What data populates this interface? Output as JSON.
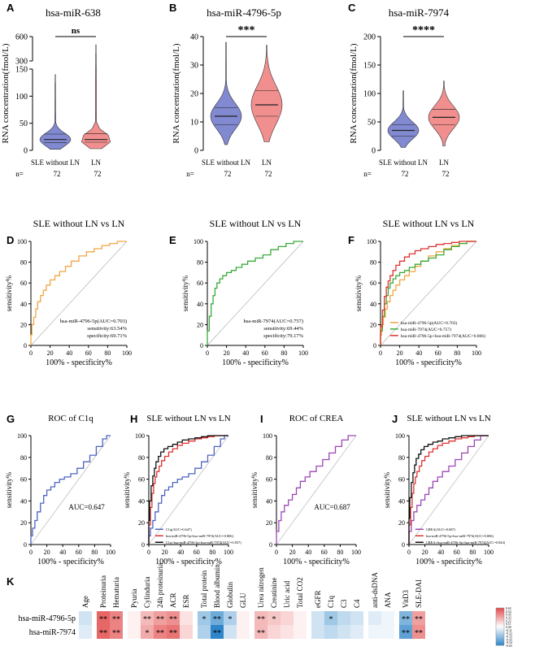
{
  "figure": {
    "panels": [
      "A",
      "B",
      "C",
      "D",
      "E",
      "F",
      "G",
      "H",
      "I",
      "J",
      "K"
    ]
  },
  "chart_data": [
    {
      "id": "A",
      "type": "violin",
      "title": "hsa-miR-638",
      "ylabel": "RNA concentration(fmol/L)",
      "categories": [
        "SLE without LN",
        "LN"
      ],
      "n_label": "n=",
      "n": [
        72,
        72
      ],
      "significance": "ns",
      "yticks": [
        "0",
        "50",
        "100",
        "150",
        "300",
        "600"
      ],
      "y_break": [
        150,
        300
      ],
      "colors": [
        "#6b74c8",
        "#ef7b7b"
      ],
      "series": [
        {
          "name": "SLE without LN",
          "median": 20,
          "q1": 14,
          "q3": 30,
          "min": 2,
          "max": 140
        },
        {
          "name": "LN",
          "median": 20,
          "q1": 15,
          "q3": 31,
          "min": 3,
          "max": 500
        }
      ]
    },
    {
      "id": "B",
      "type": "violin",
      "title": "hsa-miR-4796-5p",
      "ylabel": "RNA concentration(fmol/L)",
      "categories": [
        "SLE without LN",
        "LN"
      ],
      "n_label": "n=",
      "n": [
        72,
        72
      ],
      "significance": "***",
      "ylim": [
        0,
        40
      ],
      "yticks": [
        "0",
        "10",
        "20",
        "30",
        "40"
      ],
      "colors": [
        "#6b74c8",
        "#ef7b7b"
      ],
      "series": [
        {
          "name": "SLE without LN",
          "median": 12,
          "q1": 9,
          "q3": 15,
          "min": 2,
          "max": 38
        },
        {
          "name": "LN",
          "median": 16,
          "q1": 12,
          "q3": 21,
          "min": 3,
          "max": 37
        }
      ]
    },
    {
      "id": "C",
      "type": "violin",
      "title": "hsa-miR-7974",
      "ylabel": "RNA concentration(fmol/L)",
      "categories": [
        "SLE without LN",
        "LN"
      ],
      "n_label": "n=",
      "n": [
        72,
        72
      ],
      "significance": "****",
      "ylim": [
        0,
        200
      ],
      "yticks": [
        "0",
        "50",
        "100",
        "150",
        "200"
      ],
      "colors": [
        "#6b74c8",
        "#ef7b7b"
      ],
      "series": [
        {
          "name": "SLE without LN",
          "median": 35,
          "q1": 25,
          "q3": 45,
          "min": 5,
          "max": 105
        },
        {
          "name": "LN",
          "median": 58,
          "q1": 45,
          "q3": 72,
          "min": 8,
          "max": 122
        }
      ]
    },
    {
      "id": "D",
      "type": "line",
      "title": "SLE without LN vs LN",
      "xlabel": "100% - specificity%",
      "ylabel": "sensitivity%",
      "xlim": [
        0,
        100
      ],
      "ylim": [
        0,
        100
      ],
      "ticks": [
        "0",
        "20",
        "40",
        "60",
        "80",
        "100"
      ],
      "annotation": [
        "hsa-miR-4796-5p(AUC=0.703)",
        "sensitivity:63.54%",
        "specificity:69.71%"
      ],
      "series": [
        {
          "name": "hsa-miR-4796-5p",
          "color": "#f0a646",
          "x": [
            0,
            1,
            3,
            5,
            7,
            10,
            13,
            16,
            20,
            25,
            30,
            36,
            42,
            50,
            58,
            66,
            74,
            82,
            90,
            100
          ],
          "y": [
            0,
            10,
            20,
            27,
            35,
            42,
            48,
            53,
            58,
            63,
            67,
            71,
            76,
            81,
            86,
            90,
            93,
            96,
            98,
            100
          ]
        }
      ]
    },
    {
      "id": "E",
      "type": "line",
      "title": "SLE without LN vs LN",
      "xlabel": "100% - specificity%",
      "ylabel": "sensitivity%",
      "xlim": [
        0,
        100
      ],
      "ylim": [
        0,
        100
      ],
      "ticks": [
        "0",
        "20",
        "40",
        "60",
        "80",
        "100"
      ],
      "annotation": [
        "hsa-miR-7974(AUC=0.757)",
        "sensitivity:69.44%",
        "specificity:79.17%"
      ],
      "series": [
        {
          "name": "hsa-miR-7974",
          "color": "#3aaa3a",
          "x": [
            0,
            2,
            4,
            6,
            8,
            10,
            13,
            16,
            20,
            25,
            30,
            36,
            42,
            50,
            58,
            66,
            74,
            82,
            90,
            100
          ],
          "y": [
            0,
            14,
            28,
            40,
            48,
            55,
            60,
            64,
            67,
            70,
            72,
            75,
            78,
            81,
            84,
            87,
            92,
            95,
            98,
            100
          ]
        }
      ]
    },
    {
      "id": "F",
      "type": "line",
      "title": "SLE without LN vs LN",
      "xlabel": "100% - specificity%",
      "ylabel": "sensitivity%",
      "xlim": [
        0,
        100
      ],
      "ylim": [
        0,
        100
      ],
      "ticks": [
        "0",
        "20",
        "40",
        "60",
        "80",
        "100"
      ],
      "legend_position": "bottom-right",
      "series": [
        {
          "name": "hsa-miR-4796-5p(AUC=0.703)",
          "color": "#f0a646",
          "x": [
            0,
            1,
            3,
            5,
            7,
            10,
            13,
            16,
            20,
            25,
            30,
            36,
            42,
            50,
            58,
            66,
            74,
            82,
            90,
            100
          ],
          "y": [
            0,
            10,
            20,
            27,
            35,
            42,
            48,
            53,
            58,
            63,
            67,
            71,
            76,
            81,
            86,
            90,
            93,
            96,
            98,
            100
          ]
        },
        {
          "name": "hsa-miR-7974(AUC=0.757)",
          "color": "#3aaa3a",
          "x": [
            0,
            2,
            4,
            6,
            8,
            10,
            13,
            16,
            20,
            25,
            30,
            36,
            42,
            50,
            58,
            66,
            74,
            82,
            90,
            100
          ],
          "y": [
            0,
            14,
            28,
            40,
            48,
            55,
            60,
            64,
            67,
            70,
            72,
            75,
            78,
            81,
            84,
            87,
            92,
            95,
            98,
            100
          ]
        },
        {
          "name": "hsa-miR-4796-5p+hsa-miR-7974(AUC=0.806)",
          "color": "#e03232",
          "x": [
            0,
            2,
            4,
            6,
            8,
            10,
            13,
            16,
            20,
            25,
            30,
            36,
            42,
            50,
            58,
            66,
            74,
            82,
            90,
            100
          ],
          "y": [
            0,
            18,
            34,
            47,
            56,
            62,
            67,
            72,
            77,
            81,
            85,
            88,
            91,
            93,
            95,
            97,
            98,
            99,
            100,
            100
          ]
        }
      ]
    },
    {
      "id": "G",
      "type": "line",
      "title": "ROC of C1q",
      "xlabel": "100% - specificity%",
      "ylabel": "sensitivity%",
      "xlim": [
        0,
        100
      ],
      "ylim": [
        0,
        100
      ],
      "ticks": [
        "0",
        "20",
        "40",
        "60",
        "80",
        "100"
      ],
      "annotation": [
        "AUC=0.647"
      ],
      "series": [
        {
          "name": "C1q",
          "color": "#4d64c0",
          "x": [
            0,
            2,
            5,
            8,
            12,
            16,
            20,
            25,
            30,
            36,
            42,
            50,
            58,
            66,
            74,
            82,
            90,
            95,
            100
          ],
          "y": [
            0,
            8,
            15,
            22,
            30,
            38,
            45,
            50,
            53,
            57,
            60,
            62,
            65,
            70,
            76,
            82,
            90,
            97,
            100
          ]
        }
      ]
    },
    {
      "id": "H",
      "type": "line",
      "title": "SLE without LN vs LN",
      "xlabel": "100% - specificity%",
      "ylabel": "sensitivity%",
      "xlim": [
        0,
        100
      ],
      "ylim": [
        0,
        100
      ],
      "ticks": [
        "0",
        "20",
        "40",
        "60",
        "80",
        "100"
      ],
      "legend_position": "bottom-right",
      "series": [
        {
          "name": "C1q(AUC=0.647)",
          "color": "#4d64c0",
          "x": [
            0,
            2,
            5,
            8,
            12,
            16,
            20,
            25,
            30,
            36,
            42,
            50,
            58,
            66,
            74,
            82,
            90,
            95,
            100
          ],
          "y": [
            0,
            8,
            15,
            22,
            30,
            38,
            45,
            50,
            53,
            57,
            60,
            62,
            65,
            70,
            76,
            82,
            90,
            97,
            100
          ]
        },
        {
          "name": "hsa-miR-4796-5p+hsa-miR-7974(AUC=0.806)",
          "color": "#e03232",
          "x": [
            0,
            2,
            4,
            6,
            8,
            10,
            13,
            16,
            20,
            25,
            30,
            36,
            42,
            50,
            58,
            66,
            74,
            82,
            90,
            100
          ],
          "y": [
            0,
            18,
            34,
            47,
            56,
            62,
            67,
            72,
            77,
            81,
            85,
            88,
            91,
            93,
            95,
            97,
            98,
            99,
            100,
            100
          ]
        },
        {
          "name": "C1q+hsa-miR-4796-5p+hsa-miR-7974(AUC=0.837)",
          "color": "#111111",
          "x": [
            0,
            1,
            3,
            5,
            7,
            9,
            12,
            15,
            19,
            24,
            30,
            36,
            42,
            50,
            58,
            66,
            74,
            82,
            90,
            100
          ],
          "y": [
            0,
            22,
            40,
            54,
            63,
            70,
            76,
            81,
            85,
            88,
            90,
            92,
            94,
            96,
            97,
            98,
            99,
            100,
            100,
            100
          ]
        }
      ]
    },
    {
      "id": "I",
      "type": "line",
      "title": "ROC of CREA",
      "xlabel": "100% - specificity%",
      "ylabel": "sensitivity%",
      "xlim": [
        0,
        100
      ],
      "ylim": [
        0,
        100
      ],
      "ticks": [
        "0",
        "20",
        "40",
        "60",
        "80",
        "100"
      ],
      "annotation": [
        "AUC=0.687"
      ],
      "series": [
        {
          "name": "CREA",
          "color": "#9b47b5",
          "x": [
            0,
            3,
            6,
            10,
            15,
            20,
            25,
            30,
            36,
            42,
            50,
            58,
            66,
            74,
            82,
            90,
            100
          ],
          "y": [
            0,
            12,
            22,
            30,
            36,
            41,
            46,
            52,
            58,
            62,
            67,
            72,
            78,
            84,
            90,
            96,
            100
          ]
        }
      ]
    },
    {
      "id": "J",
      "type": "line",
      "title": "SLE without LN vs LN",
      "xlabel": "100% - specificity%",
      "ylabel": "sensitivity%",
      "xlim": [
        0,
        100
      ],
      "ylim": [
        0,
        100
      ],
      "ticks": [
        "0",
        "20",
        "40",
        "60",
        "80",
        "100"
      ],
      "legend_position": "bottom-right",
      "series": [
        {
          "name": "CREA(AUC=0.687)",
          "color": "#9b47b5",
          "x": [
            0,
            3,
            6,
            10,
            15,
            20,
            25,
            30,
            36,
            42,
            50,
            58,
            66,
            74,
            82,
            90,
            100
          ],
          "y": [
            0,
            12,
            22,
            30,
            36,
            41,
            46,
            52,
            58,
            62,
            67,
            72,
            78,
            84,
            90,
            96,
            100
          ]
        },
        {
          "name": "hsa-miR-4796-5p+hsa-miR-7974(AUC=0.806)",
          "color": "#e03232",
          "x": [
            0,
            2,
            4,
            6,
            8,
            10,
            13,
            16,
            20,
            25,
            30,
            36,
            42,
            50,
            58,
            66,
            74,
            82,
            90,
            100
          ],
          "y": [
            0,
            18,
            34,
            47,
            56,
            62,
            67,
            72,
            77,
            81,
            85,
            88,
            91,
            93,
            95,
            97,
            98,
            99,
            100,
            100
          ]
        },
        {
          "name": "CREA+hsa-miR-4796-5p+hsa-miR-7974(AUC=0.844)",
          "color": "#111111",
          "x": [
            0,
            1,
            3,
            5,
            7,
            9,
            12,
            15,
            19,
            24,
            30,
            36,
            42,
            50,
            58,
            66,
            74,
            82,
            90,
            100
          ],
          "y": [
            0,
            24,
            43,
            57,
            66,
            73,
            79,
            83,
            87,
            90,
            92,
            94,
            95,
            97,
            98,
            99,
            100,
            100,
            100,
            100
          ]
        }
      ]
    },
    {
      "id": "K",
      "type": "heatmap",
      "columns": [
        "Age",
        "Proteinuria",
        "Hematuria",
        "Pyuria",
        "Cylinduria",
        "24h proteinuria",
        "ACR",
        "ESR",
        "Total protein",
        "Blood albumin",
        "Globulin",
        "GLU",
        "Urea nitrogen",
        "Creatinine",
        "Uric acid",
        "Total CO2",
        "eGFR",
        "C1q",
        "C3",
        "C4",
        "anti-dsDNA",
        "ANA",
        "VitD3",
        "SLE-DAI"
      ],
      "rows": [
        "hsa-miR-4796-5p",
        "hsa-miR-7974"
      ],
      "groups": [
        [
          0,
          0
        ],
        [
          1,
          2
        ],
        [
          3,
          7
        ],
        [
          8,
          11
        ],
        [
          12,
          15
        ],
        [
          16,
          19
        ],
        [
          20,
          21
        ],
        [
          22,
          23
        ]
      ],
      "values": [
        [
          -0.15,
          0.55,
          0.45,
          0.05,
          0.25,
          0.35,
          0.4,
          0.1,
          -0.3,
          -0.45,
          -0.25,
          0.05,
          0.25,
          0.2,
          0.15,
          0.05,
          -0.15,
          -0.3,
          -0.2,
          -0.15,
          -0.1,
          -0.05,
          -0.4,
          0.35
        ],
        [
          -0.1,
          0.55,
          0.45,
          0.05,
          0.3,
          0.45,
          0.5,
          0.15,
          -0.25,
          -0.65,
          -0.15,
          0.05,
          0.25,
          0.15,
          0.1,
          0.05,
          -0.15,
          -0.2,
          -0.15,
          -0.1,
          -0.05,
          -0.05,
          -0.5,
          0.4
        ]
      ],
      "stars": [
        [
          "",
          "**",
          "**",
          "",
          "**",
          "**",
          "**",
          "",
          "*",
          "**",
          "*",
          "",
          "**",
          "*",
          "",
          "",
          "",
          "*",
          "",
          "",
          "",
          "",
          "**",
          "**"
        ],
        [
          "",
          "**",
          "**",
          "",
          "*",
          "**",
          "**",
          "",
          "",
          "**",
          "",
          "",
          "**",
          "",
          "",
          "",
          "",
          "",
          "",
          "",
          "",
          "",
          "**",
          "**"
        ]
      ],
      "colorbar_ticks": [
        "0.65",
        "0.54",
        "0.43",
        "0.33",
        "0.22",
        "0.11",
        "0.00",
        "-0.11",
        "-0.22",
        "-0.33",
        "-0.43",
        "-0.54",
        "-0.65"
      ],
      "colors": {
        "pos": "#e34a4a",
        "neg": "#2f85c8",
        "mid": "#ffffff"
      }
    }
  ]
}
